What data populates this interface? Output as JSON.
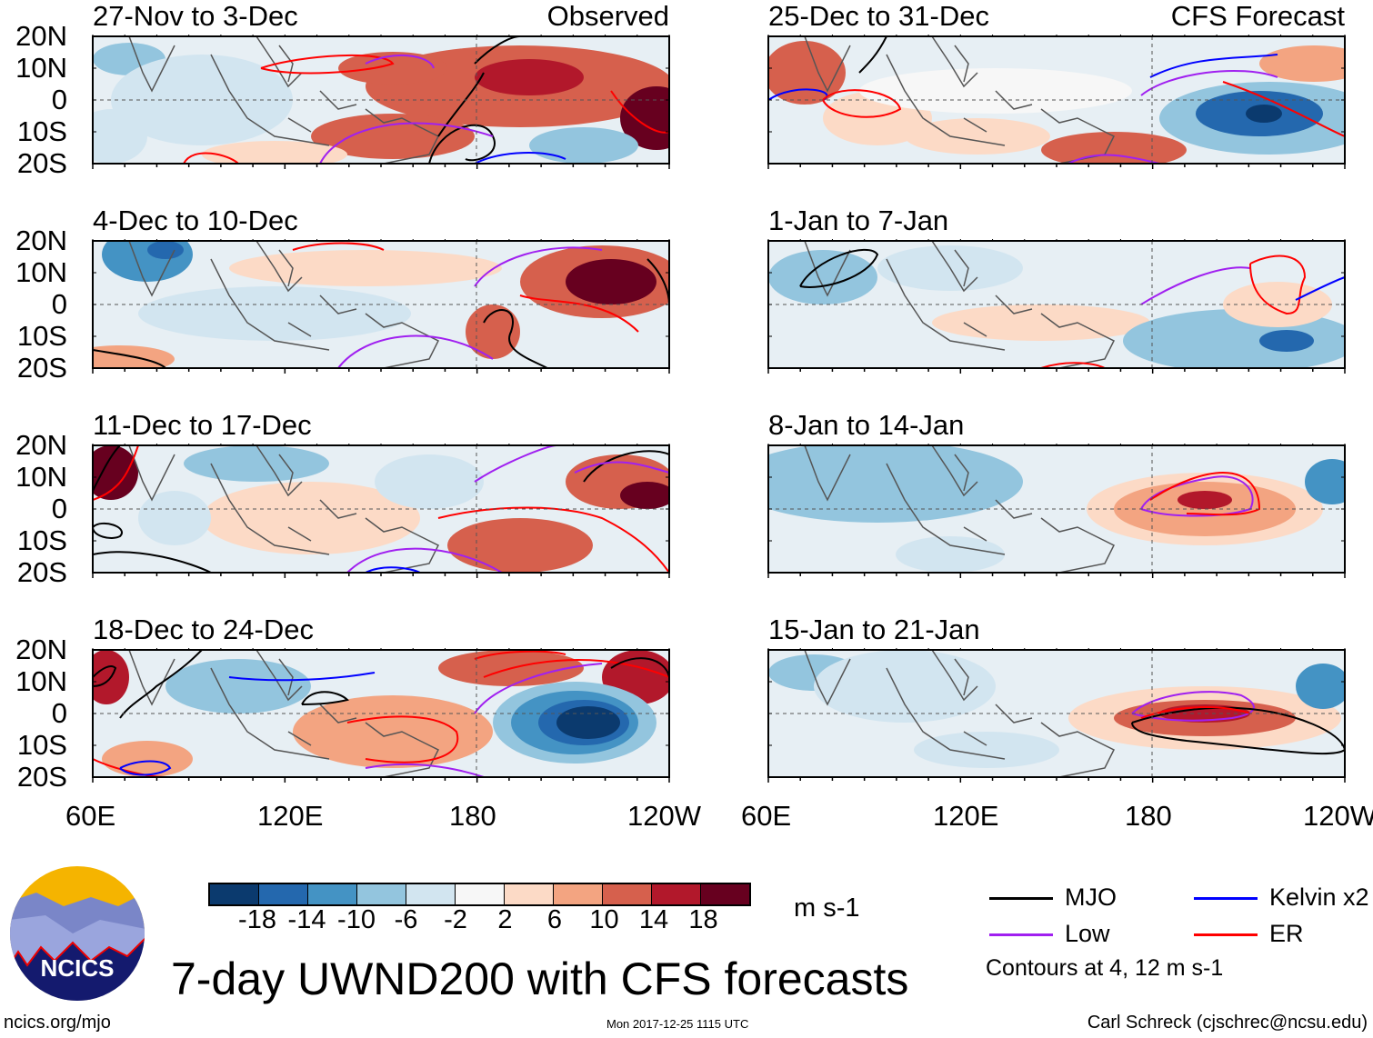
{
  "chart_data": {
    "type": "heatmap",
    "title": "7-day UWND200 with CFS forecasts",
    "variable": "200-hPa zonal wind anomaly",
    "units": "m s-1",
    "lat_ticks": [
      "20N",
      "10N",
      "0",
      "10S",
      "20S"
    ],
    "lon_ticks": [
      "60E",
      "120E",
      "180",
      "120W"
    ],
    "lat_range": [
      -20,
      20
    ],
    "lon_range": [
      60,
      240
    ],
    "colorbar_levels": [
      "-18",
      "-14",
      "-10",
      "-6",
      "-2",
      "2",
      "6",
      "10",
      "14",
      "18"
    ],
    "colorbar_colors": [
      "#0b3a6e",
      "#2468ae",
      "#4493c4",
      "#93c5de",
      "#d2e5f0",
      "#f7f7f7",
      "#fcdac6",
      "#f3a481",
      "#d6604d",
      "#b2182b",
      "#67001f"
    ],
    "contour_text": "Contours at 4, 12 m s-1",
    "legend": [
      {
        "label": "MJO",
        "color": "#000000"
      },
      {
        "label": "Kelvin x2",
        "color": "#0000ff"
      },
      {
        "label": "Low",
        "color": "#a020f0"
      },
      {
        "label": "ER",
        "color": "#ff0000"
      }
    ],
    "panels": [
      {
        "title": "27-Nov to 3-Dec",
        "tag": "Observed"
      },
      {
        "title": "25-Dec to 31-Dec",
        "tag": "CFS Forecast"
      },
      {
        "title": "4-Dec to 10-Dec",
        "tag": ""
      },
      {
        "title": "1-Jan to 7-Jan",
        "tag": ""
      },
      {
        "title": "11-Dec to 17-Dec",
        "tag": ""
      },
      {
        "title": "8-Jan to 14-Jan",
        "tag": ""
      },
      {
        "title": "18-Dec to 24-Dec",
        "tag": ""
      },
      {
        "title": "15-Jan to 21-Jan",
        "tag": ""
      }
    ]
  },
  "footer": {
    "logo_text": "NCICS",
    "url": "ncics.org/mjo",
    "timestamp": "Mon 2017-12-25 1115 UTC",
    "author": "Carl Schreck (cjschrec@ncsu.edu)"
  }
}
